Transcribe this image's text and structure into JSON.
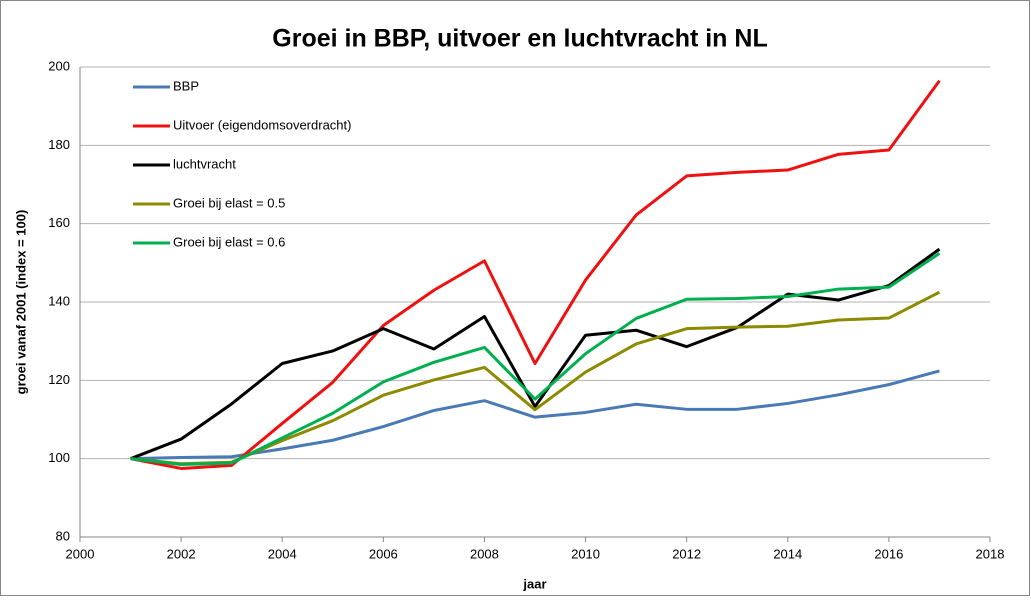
{
  "chart_data": {
    "type": "line",
    "title": "Groei in BBP, uitvoer en luchtvracht in NL",
    "x_label": "jaar",
    "y_label": "groei vanaf 2001 (index = 100)",
    "x": [
      2001,
      2002,
      2003,
      2004,
      2005,
      2006,
      2007,
      2008,
      2009,
      2010,
      2011,
      2012,
      2013,
      2014,
      2015,
      2016,
      2017
    ],
    "series": [
      {
        "name": "BBP",
        "color": "#4a7ab5",
        "values": [
          100,
          100.3,
          100.5,
          102.5,
          104.7,
          108.2,
          112.3,
          114.8,
          110.6,
          111.8,
          113.9,
          112.6,
          112.6,
          114.1,
          116.3,
          118.9,
          122.4
        ]
      },
      {
        "name": "Uitvoer (eigendomsoverdracht)",
        "color": "#ee1111",
        "values": [
          100,
          97.5,
          98.3,
          109,
          119.5,
          134,
          143,
          150.5,
          124.3,
          145.6,
          162.2,
          172.2,
          173.1,
          173.7,
          177.7,
          178.8,
          196.5
        ]
      },
      {
        "name": "luchtvracht",
        "color": "#000000",
        "values": [
          100,
          105,
          114,
          124.3,
          127.5,
          133.2,
          128,
          136.3,
          113.3,
          131.5,
          132.8,
          128.6,
          133.5,
          142,
          140.5,
          144.2,
          153.5
        ]
      },
      {
        "name": "Groei bij elast = 0.5",
        "color": "#8c8a00",
        "values": [
          100,
          98.7,
          99.1,
          104.6,
          109.7,
          116.2,
          120.1,
          123.3,
          112.5,
          122.1,
          129.3,
          133.2,
          133.6,
          133.8,
          135.4,
          135.9,
          142.5
        ]
      },
      {
        "name": "Groei bij elast = 0.6",
        "color": "#00b050",
        "values": [
          100,
          98.5,
          98.9,
          105.3,
          111.6,
          119.6,
          124.6,
          128.4,
          115.2,
          126.8,
          135.8,
          140.7,
          140.9,
          141.4,
          143.3,
          143.8,
          152.4
        ]
      }
    ],
    "xlim": [
      2000,
      2018
    ],
    "xticks": [
      2000,
      2002,
      2004,
      2006,
      2008,
      2010,
      2012,
      2014,
      2016,
      2018
    ],
    "ylim": [
      80,
      200
    ],
    "yticks": [
      80,
      100,
      120,
      140,
      160,
      180,
      200
    ],
    "grid": true
  }
}
